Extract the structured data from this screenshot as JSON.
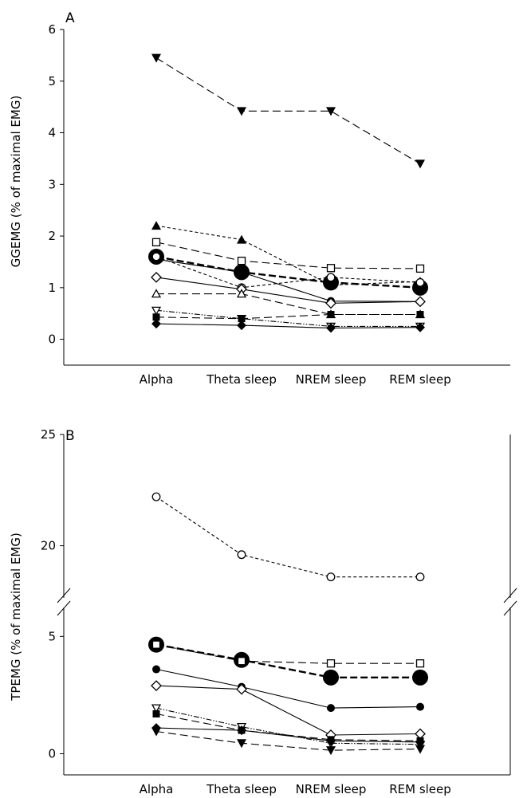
{
  "chart_data": [
    {
      "panel": "A",
      "type": "line",
      "categories": [
        "Alpha",
        "Theta sleep",
        "NREM sleep",
        "REM sleep"
      ],
      "ylabel": "GGEMG (% of maximal EMG)",
      "yticks": [
        0,
        1,
        2,
        3,
        4,
        5,
        6
      ],
      "ylim": [
        -0.5,
        6
      ],
      "series": [
        {
          "marker": "triangle-down-filled",
          "line": "longdash",
          "values": [
            5.45,
            4.42,
            4.42,
            3.4
          ]
        },
        {
          "marker": "triangle-up-filled",
          "line": "shortdash",
          "values": [
            2.2,
            1.93,
            1.05,
            1.12
          ]
        },
        {
          "marker": "square-open",
          "line": "longdash",
          "values": [
            1.88,
            1.52,
            1.38,
            1.37
          ]
        },
        {
          "marker": "circle-large-filled",
          "line": "bolddash",
          "values": [
            1.6,
            1.3,
            1.1,
            1.0
          ]
        },
        {
          "marker": "circle-small-filled",
          "line": "solid",
          "values": [
            1.55,
            1.3,
            0.74,
            0.73
          ]
        },
        {
          "marker": "circle-open",
          "line": "shortdash",
          "values": [
            1.6,
            1.0,
            1.2,
            1.1
          ]
        },
        {
          "marker": "diamond-open",
          "line": "solid",
          "values": [
            1.2,
            0.97,
            0.7,
            0.73
          ]
        },
        {
          "marker": "triangle-up-open",
          "line": "longdash",
          "values": [
            0.88,
            0.88,
            0.48,
            0.48
          ]
        },
        {
          "marker": "triangle-down-open",
          "line": "dashdotdot",
          "values": [
            0.56,
            0.4,
            0.25,
            0.25
          ]
        },
        {
          "marker": "square-filled",
          "line": "longdash",
          "values": [
            0.43,
            0.4,
            0.48,
            0.48
          ]
        },
        {
          "marker": "diamond-filled",
          "line": "solid",
          "values": [
            0.3,
            0.27,
            0.22,
            0.23
          ]
        }
      ]
    },
    {
      "panel": "B",
      "type": "line",
      "categories": [
        "Alpha",
        "Theta sleep",
        "NREM sleep",
        "REM sleep"
      ],
      "ylabel": "TPEMG (% of maximal EMG)",
      "yticks": [
        0,
        5,
        20,
        25
      ],
      "axis_break": {
        "lower_range": [
          -0.9,
          6.2
        ],
        "upper_range": [
          17.8,
          25
        ]
      },
      "series": [
        {
          "marker": "circle-open",
          "line": "shortdash",
          "values": [
            22.2,
            19.6,
            18.6,
            18.6
          ]
        },
        {
          "marker": "circle-large-filled",
          "line": "bolddash",
          "values": [
            4.65,
            4.0,
            3.25,
            3.25
          ]
        },
        {
          "marker": "square-open",
          "line": "longdash",
          "values": [
            4.65,
            3.95,
            3.85,
            3.85
          ]
        },
        {
          "marker": "circle-small-filled",
          "line": "solid",
          "values": [
            3.6,
            2.85,
            1.95,
            2.0
          ]
        },
        {
          "marker": "diamond-open",
          "line": "solid",
          "values": [
            2.9,
            2.75,
            0.8,
            0.85
          ]
        },
        {
          "marker": "triangle-down-open",
          "line": "dashdotdot",
          "values": [
            1.95,
            1.15,
            0.45,
            0.4
          ]
        },
        {
          "marker": "square-filled",
          "line": "longdash",
          "values": [
            1.7,
            1.0,
            0.6,
            0.55
          ]
        },
        {
          "marker": "diamond-filled",
          "line": "solid",
          "values": [
            1.1,
            1.0,
            0.55,
            0.5
          ]
        },
        {
          "marker": "triangle-down-filled",
          "line": "longdash",
          "values": [
            0.95,
            0.45,
            0.15,
            0.2
          ]
        }
      ]
    }
  ]
}
